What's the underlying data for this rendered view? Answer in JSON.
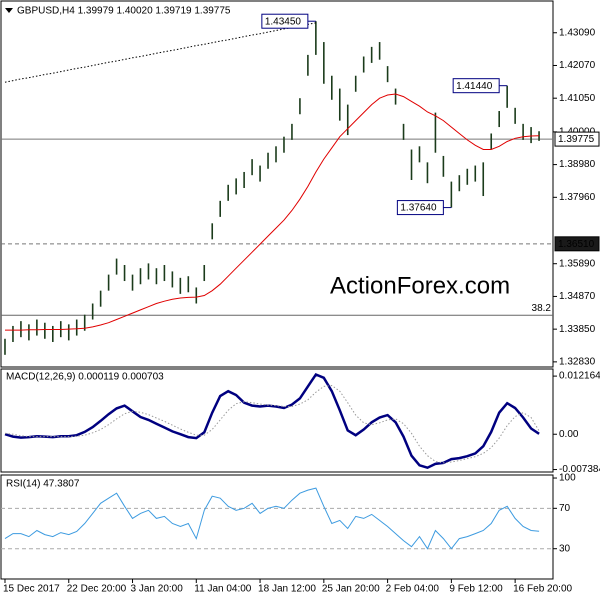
{
  "chart_data": [
    {
      "type": "ohlc",
      "title": "GBPUSD,H4 1.39979 1.40020 1.39719 1.39775",
      "watermark": "ActionForex.com",
      "color": "#1b3b1b",
      "xlim": [
        -0.5,
        68.75
      ],
      "ylim": [
        1.3267,
        1.4408
      ],
      "yticks": [
        {
          "value": 1.4309,
          "label": "1.43090"
        },
        {
          "value": 1.4207,
          "label": "1.42070"
        },
        {
          "value": 1.4105,
          "label": "1.41050"
        },
        {
          "value": 1.4,
          "label": "1.40000"
        },
        {
          "value": 1.3898,
          "label": "1.38980"
        },
        {
          "value": 1.3796,
          "label": "1.37960"
        },
        {
          "value": 1.3589,
          "label": "1.35890"
        },
        {
          "value": 1.3487,
          "label": "1.34870"
        },
        {
          "value": 1.3385,
          "label": "1.33850"
        },
        {
          "value": 1.3283,
          "label": "1.32830"
        }
      ],
      "high": [
        1.3355,
        1.3395,
        1.341,
        1.34,
        1.3415,
        1.3405,
        1.3395,
        1.341,
        1.34,
        1.3415,
        1.343,
        1.3465,
        1.3505,
        1.3555,
        1.3605,
        1.3585,
        1.3555,
        1.3575,
        1.359,
        1.3575,
        1.3585,
        1.3565,
        1.3545,
        1.355,
        1.3515,
        1.3585,
        1.3715,
        1.3785,
        1.3835,
        1.3855,
        1.3875,
        1.3915,
        1.3895,
        1.3935,
        1.3955,
        1.3985,
        1.4025,
        1.4105,
        1.424,
        1.4345,
        1.428,
        1.4175,
        1.4135,
        1.4085,
        1.4175,
        1.4235,
        1.4265,
        1.428,
        1.4205,
        1.4135,
        1.4025,
        1.3945,
        1.3955,
        1.3905,
        1.406,
        1.3925,
        1.3845,
        1.3865,
        1.3885,
        1.3895,
        1.3905,
        1.3995,
        1.4065,
        1.4144,
        1.4075,
        1.4025,
        1.4015,
        1.4002
      ],
      "low": [
        1.3305,
        1.3345,
        1.336,
        1.335,
        1.3365,
        1.3355,
        1.3345,
        1.336,
        1.335,
        1.3365,
        1.338,
        1.3415,
        1.3455,
        1.3505,
        1.3555,
        1.3535,
        1.3505,
        1.3525,
        1.354,
        1.3525,
        1.3535,
        1.3515,
        1.3495,
        1.35,
        1.3465,
        1.3535,
        1.3665,
        1.3735,
        1.3785,
        1.3805,
        1.3825,
        1.3865,
        1.3845,
        1.3885,
        1.3905,
        1.3935,
        1.3975,
        1.4055,
        1.4175,
        1.424,
        1.415,
        1.41,
        1.4035,
        1.399,
        1.4125,
        1.4185,
        1.4215,
        1.4225,
        1.4155,
        1.4085,
        1.3975,
        1.385,
        1.3905,
        1.384,
        1.3935,
        1.386,
        1.3764,
        1.3815,
        1.3835,
        1.3845,
        1.38,
        1.3945,
        1.4015,
        1.4075,
        1.4025,
        1.3975,
        1.3965,
        1.3972
      ],
      "series": [
        {
          "color": "#e00000",
          "style": "solid",
          "values": [
            1.3382,
            1.3382,
            1.3382,
            1.3383,
            1.3383,
            1.3384,
            1.3384,
            1.3384,
            1.3385,
            1.3386,
            1.3388,
            1.3392,
            1.3398,
            1.3405,
            1.3415,
            1.3425,
            1.3435,
            1.3445,
            1.3455,
            1.3465,
            1.3472,
            1.3478,
            1.3482,
            1.3484,
            1.3485,
            1.349,
            1.3505,
            1.3525,
            1.355,
            1.3575,
            1.36,
            1.3625,
            1.365,
            1.3675,
            1.37,
            1.3725,
            1.3755,
            1.379,
            1.383,
            1.3875,
            1.3915,
            1.395,
            1.3985,
            1.401,
            1.4035,
            1.406,
            1.4085,
            1.4105,
            1.4115,
            1.4118,
            1.411,
            1.4095,
            1.408,
            1.4062,
            1.405,
            1.4035,
            1.4015,
            1.3995,
            1.3975,
            1.3958,
            1.3945,
            1.3945,
            1.3955,
            1.397,
            1.398,
            1.3985,
            1.3987,
            1.3988
          ]
        },
        {
          "color": "#000000",
          "style": "dotted",
          "values": [
            1.4155,
            1.416,
            1.4165,
            1.4169,
            1.4174,
            1.4179,
            1.4183,
            1.4188,
            1.4193,
            1.4198,
            1.4202,
            1.4207,
            1.4212,
            1.4217,
            1.4221,
            1.4226,
            1.4231,
            1.4235,
            1.424,
            1.4245,
            1.425,
            1.4254,
            1.4259,
            1.4264,
            1.4269,
            1.4273,
            1.4278,
            1.4283,
            1.4287,
            1.4292,
            1.4297,
            1.4302,
            1.4306,
            1.4311,
            1.4316,
            1.4321,
            1.4325,
            1.433,
            1.4335,
            1.434,
            null,
            null,
            null,
            null,
            null,
            null,
            null,
            null,
            null,
            null,
            null,
            null,
            null,
            null,
            null,
            null,
            null,
            null,
            null,
            null,
            null,
            null,
            null,
            null,
            null,
            null,
            null,
            null
          ]
        }
      ],
      "annotations": [
        {
          "value": 1.4345,
          "label": "1.43450"
        },
        {
          "value": 1.4144,
          "label": "1.41440"
        },
        {
          "value": 1.3764,
          "label": "1.37640"
        }
      ],
      "levels": [
        {
          "value": 1.3651,
          "label": "1.36510",
          "style": "dashed"
        },
        {
          "value": 1.39775,
          "style": "solid"
        }
      ],
      "fibo": {
        "level": 1.34285,
        "label": "38.2"
      }
    },
    {
      "type": "line",
      "title": "MACD(12,26,9) 0.000119 0.000703",
      "xlim": [
        -0.5,
        68.75
      ],
      "ylim": [
        -0.0079,
        0.01365
      ],
      "yticks": [
        0.012164,
        {
          "value": 0,
          "label": "0.00"
        },
        -0.007384
      ],
      "series": [
        {
          "color": "#000080",
          "style": "thick",
          "values": [
            0,
            -0.0005,
            -0.0007,
            -0.0006,
            -0.0004,
            -0.0005,
            -0.0006,
            -0.0004,
            -0.0004,
            -0.0002,
            0.0005,
            0.0015,
            0.0028,
            0.0042,
            0.0054,
            0.006,
            0.0048,
            0.0036,
            0.003,
            0.0022,
            0.0014,
            0.0006,
            0,
            -0.0006,
            -0.0008,
            0.0004,
            0.0045,
            0.008,
            0.009,
            0.0082,
            0.0066,
            0.006,
            0.0058,
            0.006,
            0.0058,
            0.0055,
            0.0062,
            0.0075,
            0.01,
            0.0125,
            0.0118,
            0.009,
            0.005,
            0.0008,
            -0.0002,
            0.001,
            0.0025,
            0.0035,
            0.004,
            0.0025,
            -0.0005,
            -0.0045,
            -0.0065,
            -0.007,
            -0.0062,
            -0.006,
            -0.0052,
            -0.005,
            -0.0046,
            -0.004,
            -0.0025,
            0.0005,
            0.0045,
            0.0065,
            0.0055,
            0.0035,
            0.0012,
            0.0001
          ]
        },
        {
          "color": "#999999",
          "style": "dotted",
          "values": [
            0.0002,
            0,
            -0.0003,
            -0.0005,
            -0.0005,
            -0.0005,
            -0.0005,
            -0.0005,
            -0.0005,
            -0.0004,
            -0.0002,
            0.0003,
            0.001,
            0.002,
            0.0032,
            0.0043,
            0.0048,
            0.0046,
            0.0041,
            0.0034,
            0.0027,
            0.0019,
            0.0011,
            0.0004,
            -0.0002,
            -0.0002,
            0.001,
            0.003,
            0.005,
            0.0064,
            0.0068,
            0.0066,
            0.0063,
            0.0061,
            0.006,
            0.0058,
            0.0058,
            0.0063,
            0.0072,
            0.0088,
            0.01,
            0.0102,
            0.009,
            0.0066,
            0.004,
            0.0024,
            0.002,
            0.0024,
            0.003,
            0.0032,
            0.0022,
            0.0002,
            -0.0025,
            -0.0045,
            -0.0057,
            -0.006,
            -0.0058,
            -0.0055,
            -0.0051,
            -0.0047,
            -0.004,
            -0.0028,
            -0.0008,
            0.0018,
            0.0037,
            0.0045,
            0.0035,
            0.0007
          ]
        }
      ]
    },
    {
      "type": "line",
      "title": "RSI(14) 47.3807",
      "xlim": [
        -0.5,
        68.75
      ],
      "ylim": [
        0,
        103
      ],
      "yticks": [
        100,
        70,
        30
      ],
      "levels": [
        {
          "value": 70,
          "style": "dashed"
        },
        {
          "value": 30,
          "style": "dashed"
        }
      ],
      "xticks": [
        {
          "value": 0,
          "label": "15 Dec 2017"
        },
        {
          "value": 8,
          "label": "22 Dec 20:00"
        },
        {
          "value": 16,
          "label": "3 Jan 20:00"
        },
        {
          "value": 24,
          "label": "11 Jan 04:00"
        },
        {
          "value": 32,
          "label": "18 Jan 12:00"
        },
        {
          "value": 40,
          "label": "25 Jan 20:00"
        },
        {
          "value": 48,
          "label": "2 Feb 04:00"
        },
        {
          "value": 56,
          "label": "9 Feb 12:00"
        },
        {
          "value": 64,
          "label": "16 Feb 20:00"
        }
      ],
      "series": [
        {
          "color": "#3d9be0",
          "style": "solid",
          "values": [
            40,
            45,
            45,
            42,
            48,
            44,
            42,
            46,
            44,
            47,
            55,
            65,
            75,
            80,
            85,
            72,
            60,
            65,
            68,
            60,
            62,
            55,
            52,
            55,
            40,
            68,
            82,
            80,
            72,
            68,
            70,
            75,
            65,
            70,
            72,
            70,
            78,
            85,
            88,
            90,
            72,
            55,
            58,
            50,
            62,
            60,
            64,
            58,
            52,
            45,
            38,
            32,
            42,
            30,
            48,
            40,
            30,
            40,
            42,
            45,
            48,
            55,
            68,
            72,
            60,
            52,
            48,
            47.3807
          ]
        }
      ]
    }
  ]
}
